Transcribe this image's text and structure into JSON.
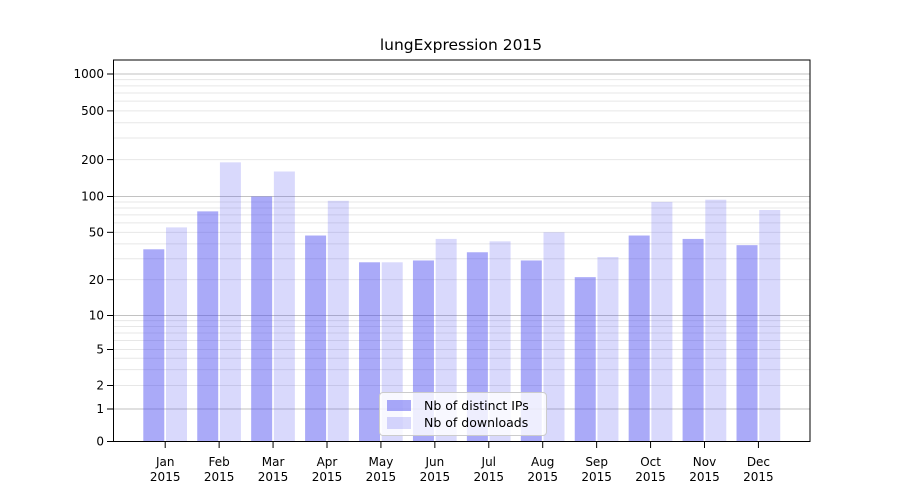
{
  "figure": {
    "background": "#ffffff"
  },
  "chart_data": {
    "type": "bar",
    "title": "lungExpression 2015",
    "categories": [
      "Jan",
      "Feb",
      "Mar",
      "Apr",
      "May",
      "Jun",
      "Jul",
      "Aug",
      "Sep",
      "Oct",
      "Nov",
      "Dec"
    ],
    "x_tick_second_line": "2015",
    "series": [
      {
        "name": "Nb of distinct IPs",
        "color": "#4d4df0",
        "alpha": 0.48,
        "values": [
          36,
          75,
          100,
          47,
          28,
          29,
          34,
          29,
          21,
          47,
          44,
          39
        ]
      },
      {
        "name": "Nb of downloads",
        "color": "#4d4df0",
        "alpha": 0.21,
        "values": [
          55,
          190,
          160,
          92,
          28,
          44,
          42,
          50,
          31,
          90,
          94,
          77
        ]
      }
    ],
    "xlabel": "",
    "ylabel": "",
    "yaxis": {
      "scale": "symlog",
      "tick_labels": [
        "1000",
        "500",
        "200",
        "100",
        "50",
        "20",
        "10",
        "5",
        "2",
        "1",
        "0"
      ],
      "ylim": [
        0,
        1000
      ]
    },
    "grid": {
      "enabled": true,
      "major_color": "#c2c2c2",
      "minor_color": "#e7e7e7"
    },
    "legend": {
      "position": "lower-center"
    }
  }
}
